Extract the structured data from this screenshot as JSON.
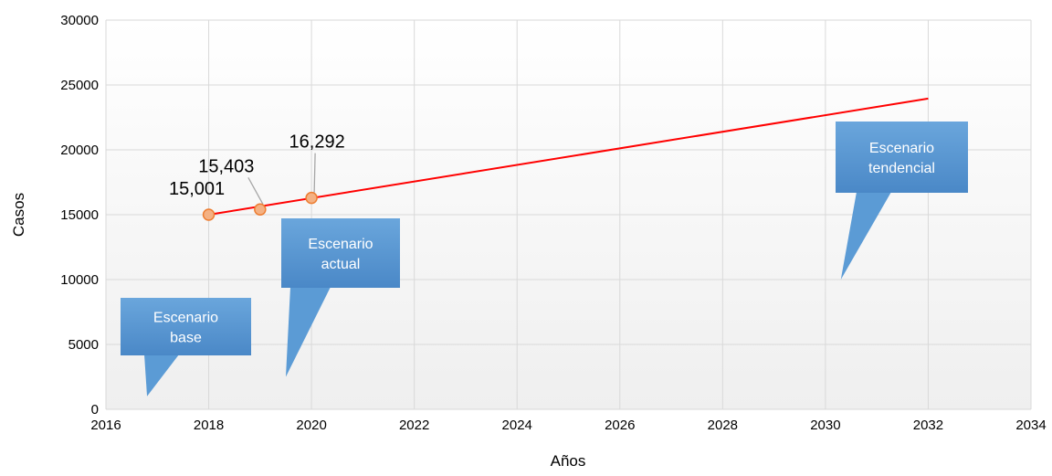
{
  "chart_data": {
    "type": "line",
    "title": "",
    "xlabel": "Años",
    "ylabel": "Casos",
    "xlim": [
      2016,
      2034
    ],
    "ylim": [
      0,
      30000
    ],
    "x_ticks": [
      "2016",
      "2018",
      "2020",
      "2022",
      "2024",
      "2026",
      "2028",
      "2030",
      "2032",
      "2034"
    ],
    "y_ticks": [
      "0",
      "5000",
      "10000",
      "15000",
      "20000",
      "25000",
      "30000"
    ],
    "grid": true,
    "series": [
      {
        "type": "scatter",
        "color": "#ED7D31",
        "points": [
          {
            "x": 2018,
            "y": 15001,
            "label": "15,001"
          },
          {
            "x": 2019,
            "y": 15403,
            "label": "15,403"
          },
          {
            "x": 2020,
            "y": 16292,
            "label": "16,292"
          }
        ]
      },
      {
        "type": "line",
        "color": "#FF0000",
        "points": [
          {
            "x": 2018,
            "y": 15001
          },
          {
            "x": 2032,
            "y": 23950
          }
        ]
      }
    ],
    "annotations": [
      {
        "text": [
          "Escenario",
          "base"
        ],
        "pointer": {
          "x": 2016.8,
          "y": 1000
        }
      },
      {
        "text": [
          "Escenario",
          "actual"
        ],
        "pointer": {
          "x": 2019.5,
          "y": 2500
        }
      },
      {
        "text": [
          "Escenario",
          "tendencial"
        ],
        "pointer": {
          "x": 2030.3,
          "y": 10000
        }
      }
    ],
    "callout_color": "#5B9BD5"
  }
}
